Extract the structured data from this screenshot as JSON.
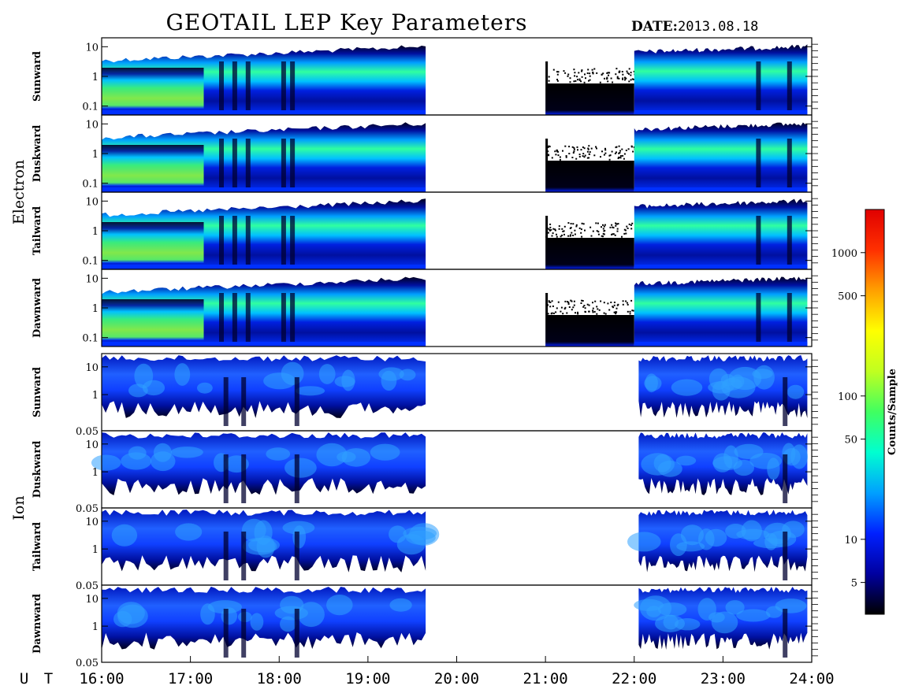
{
  "header": {
    "title": "GEOTAIL LEP Key Parameters",
    "date_label": "DATE:",
    "date_value": "2013.08.18"
  },
  "chart_data": {
    "type": "heatmap",
    "title": "GEOTAIL LEP Key Parameters",
    "date": "2013.08.18",
    "x_axis": {
      "label": "U T",
      "range_hours": [
        16,
        24
      ],
      "ticks": [
        {
          "value": 16,
          "label": "16:00"
        },
        {
          "value": 17,
          "label": "17:00"
        },
        {
          "value": 18,
          "label": "18:00"
        },
        {
          "value": 19,
          "label": "19:00"
        },
        {
          "value": 20,
          "label": "20:00"
        },
        {
          "value": 21,
          "label": "21:00"
        },
        {
          "value": 22,
          "label": "22:00"
        },
        {
          "value": 23,
          "label": "23:00"
        },
        {
          "value": 24,
          "label": "24:00"
        }
      ]
    },
    "groups": [
      {
        "name": "Electron",
        "y_scale": "log",
        "y_range": [
          0.05,
          20
        ],
        "y_ticks": [
          {
            "value": 10,
            "label": "10"
          },
          {
            "value": 1,
            "label": "1"
          },
          {
            "value": 0.1,
            "label": "0.1"
          }
        ],
        "panels": [
          {
            "label": "Sunward",
            "segments": [
              [
                16.0,
                19.65,
                "active"
              ],
              [
                21.0,
                22.0,
                "sparse"
              ],
              [
                22.0,
                23.95,
                "active"
              ]
            ],
            "dips": [
              17.35,
              17.5,
              17.65,
              18.05,
              18.15,
              23.4,
              23.75
            ]
          },
          {
            "label": "Duskward",
            "segments": [
              [
                16.0,
                19.65,
                "active"
              ],
              [
                21.0,
                22.0,
                "sparse"
              ],
              [
                22.0,
                23.95,
                "active"
              ]
            ],
            "dips": [
              17.35,
              17.5,
              17.65,
              18.05,
              18.15,
              23.4,
              23.75
            ]
          },
          {
            "label": "Tailward",
            "segments": [
              [
                16.0,
                19.65,
                "active"
              ],
              [
                21.0,
                22.0,
                "sparse"
              ],
              [
                22.0,
                23.95,
                "active"
              ]
            ],
            "dips": [
              17.35,
              17.5,
              17.65,
              18.05,
              18.15,
              23.4,
              23.75
            ]
          },
          {
            "label": "Dawnward",
            "segments": [
              [
                16.0,
                19.65,
                "active"
              ],
              [
                21.0,
                22.0,
                "sparse"
              ],
              [
                22.0,
                23.95,
                "active"
              ]
            ],
            "dips": [
              17.35,
              17.5,
              17.65,
              18.05,
              18.15,
              23.4,
              23.75
            ]
          }
        ]
      },
      {
        "name": "Ion",
        "y_scale": "log",
        "y_range": [
          0.05,
          30
        ],
        "y_ticks": [
          {
            "value": 10,
            "label": "10"
          },
          {
            "value": 1,
            "label": "1"
          },
          {
            "value": 0.05,
            "label": "0.05"
          }
        ],
        "panels": [
          {
            "label": "Sunward",
            "segments": [
              [
                16.0,
                19.65,
                "active"
              ],
              [
                22.05,
                23.95,
                "active"
              ]
            ],
            "dips": [
              17.4,
              17.6,
              18.2,
              23.7
            ]
          },
          {
            "label": "Duskward",
            "segments": [
              [
                16.0,
                19.65,
                "active"
              ],
              [
                22.05,
                23.95,
                "active"
              ]
            ],
            "dips": [
              17.4,
              17.6,
              18.2,
              23.7
            ]
          },
          {
            "label": "Tailward",
            "segments": [
              [
                16.0,
                19.65,
                "active"
              ],
              [
                22.05,
                23.95,
                "active"
              ]
            ],
            "dips": [
              17.4,
              17.6,
              18.2,
              23.7
            ]
          },
          {
            "label": "Dawnward",
            "segments": [
              [
                16.0,
                19.65,
                "active"
              ],
              [
                22.05,
                23.95,
                "active"
              ]
            ],
            "dips": [
              17.4,
              17.6,
              18.2,
              23.7
            ]
          }
        ]
      }
    ],
    "colorbar": {
      "title": "Counts/Sample",
      "scale": "log",
      "range": [
        3,
        2000
      ],
      "ticks": [
        {
          "value": 5,
          "label": "5"
        },
        {
          "value": 10,
          "label": "10"
        },
        {
          "value": 50,
          "label": "50"
        },
        {
          "value": 100,
          "label": "100"
        },
        {
          "value": 500,
          "label": "500"
        },
        {
          "value": 1000,
          "label": "1000"
        }
      ],
      "colors": [
        "#000000",
        "#0000a0",
        "#0020ff",
        "#00a0ff",
        "#00ffd0",
        "#40ff60",
        "#c0ff20",
        "#ffff00",
        "#ffa000",
        "#ff3000",
        "#e00000"
      ]
    }
  }
}
